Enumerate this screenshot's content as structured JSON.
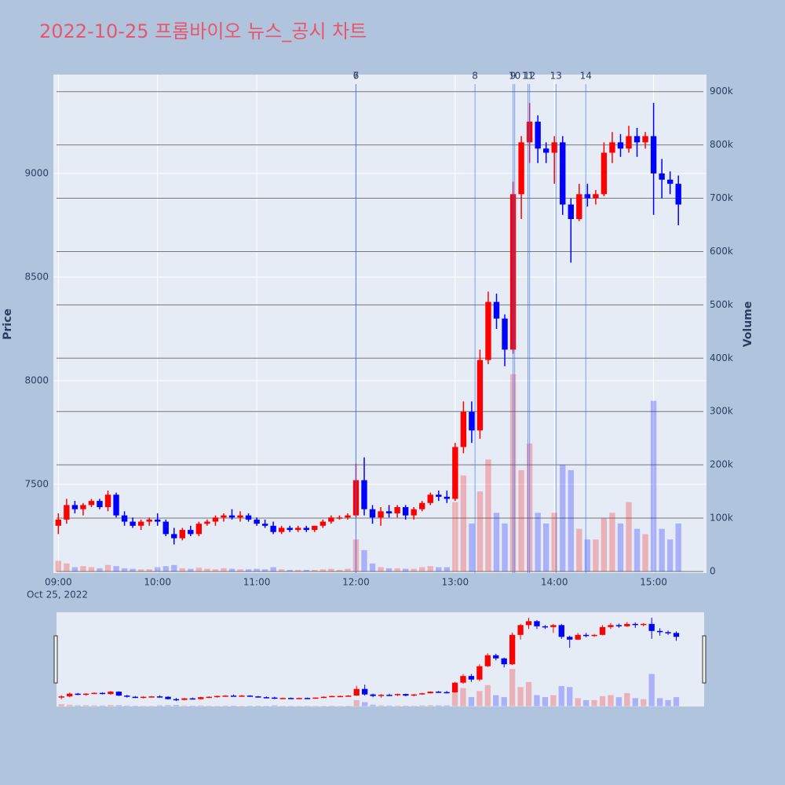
{
  "chart_data": {
    "type": "candlestick",
    "title": "2022-10-25 프롬바이오 뉴스_공시 차트",
    "y_axis_title": "Price",
    "y2_axis_title": "Volume",
    "x_date_label": "Oct 25, 2022",
    "increasing_color": "#ff0000",
    "decreasing_color": "#0000ff",
    "xlim": [
      "2022-10-25 08:57",
      "2022-10-25 15:32"
    ],
    "xticks": [
      {
        "value": "2022-10-25 09:00",
        "label": "09:00"
      },
      {
        "value": "2022-10-25 10:00",
        "label": "10:00"
      },
      {
        "value": "2022-10-25 11:00",
        "label": "11:00"
      },
      {
        "value": "2022-10-25 12:00",
        "label": "12:00"
      },
      {
        "value": "2022-10-25 13:00",
        "label": "13:00"
      },
      {
        "value": "2022-10-25 14:00",
        "label": "14:00"
      },
      {
        "value": "2022-10-25 15:00",
        "label": "15:00"
      }
    ],
    "ylim": [
      7072,
      9477
    ],
    "yticks": [
      7500,
      8000,
      8500,
      9000
    ],
    "y2lim": [
      -3000,
      932000
    ],
    "y2ticks": [
      0,
      {
        "value": 100000,
        "label": "100k"
      },
      {
        "value": 200000,
        "label": "200k"
      },
      {
        "value": 300000,
        "label": "300k"
      },
      {
        "value": 400000,
        "label": "400k"
      },
      {
        "value": 500000,
        "label": "500k"
      },
      {
        "value": 600000,
        "label": "600k"
      },
      {
        "value": 700000,
        "label": "700k"
      },
      {
        "value": 800000,
        "label": "800k"
      },
      {
        "value": 900000,
        "label": "900k"
      }
    ],
    "grid": true,
    "x": [
      "2022-10-25 09:00",
      "2022-10-25 09:05",
      "2022-10-25 09:10",
      "2022-10-25 09:15",
      "2022-10-25 09:20",
      "2022-10-25 09:25",
      "2022-10-25 09:30",
      "2022-10-25 09:35",
      "2022-10-25 09:40",
      "2022-10-25 09:45",
      "2022-10-25 09:50",
      "2022-10-25 09:55",
      "2022-10-25 10:00",
      "2022-10-25 10:05",
      "2022-10-25 10:10",
      "2022-10-25 10:15",
      "2022-10-25 10:20",
      "2022-10-25 10:25",
      "2022-10-25 10:30",
      "2022-10-25 10:35",
      "2022-10-25 10:40",
      "2022-10-25 10:45",
      "2022-10-25 10:50",
      "2022-10-25 10:55",
      "2022-10-25 11:00",
      "2022-10-25 11:05",
      "2022-10-25 11:10",
      "2022-10-25 11:15",
      "2022-10-25 11:20",
      "2022-10-25 11:25",
      "2022-10-25 11:30",
      "2022-10-25 11:35",
      "2022-10-25 11:40",
      "2022-10-25 11:45",
      "2022-10-25 11:50",
      "2022-10-25 11:55",
      "2022-10-25 12:00",
      "2022-10-25 12:05",
      "2022-10-25 12:10",
      "2022-10-25 12:15",
      "2022-10-25 12:20",
      "2022-10-25 12:25",
      "2022-10-25 12:30",
      "2022-10-25 12:35",
      "2022-10-25 12:40",
      "2022-10-25 12:45",
      "2022-10-25 12:50",
      "2022-10-25 12:55",
      "2022-10-25 13:00",
      "2022-10-25 13:05",
      "2022-10-25 13:10",
      "2022-10-25 13:15",
      "2022-10-25 13:20",
      "2022-10-25 13:25",
      "2022-10-25 13:30",
      "2022-10-25 13:35",
      "2022-10-25 13:40",
      "2022-10-25 13:45",
      "2022-10-25 13:50",
      "2022-10-25 13:55",
      "2022-10-25 14:00",
      "2022-10-25 14:05",
      "2022-10-25 14:10",
      "2022-10-25 14:15",
      "2022-10-25 14:20",
      "2022-10-25 14:25",
      "2022-10-25 14:30",
      "2022-10-25 14:35",
      "2022-10-25 14:40",
      "2022-10-25 14:45",
      "2022-10-25 14:50",
      "2022-10-25 14:55",
      "2022-10-25 15:00",
      "2022-10-25 15:05",
      "2022-10-25 15:10",
      "2022-10-25 15:15"
    ],
    "open": [
      7300,
      7330,
      7400,
      7380,
      7400,
      7420,
      7390,
      7450,
      7350,
      7320,
      7300,
      7320,
      7330,
      7320,
      7260,
      7240,
      7280,
      7260,
      7310,
      7320,
      7340,
      7350,
      7340,
      7350,
      7330,
      7310,
      7300,
      7270,
      7290,
      7280,
      7290,
      7280,
      7300,
      7320,
      7340,
      7340,
      7350,
      7520,
      7380,
      7340,
      7370,
      7360,
      7390,
      7350,
      7380,
      7410,
      7450,
      7440,
      7430,
      7680,
      7850,
      7760,
      8100,
      8380,
      8300,
      8150,
      8900,
      9150,
      9250,
      9120,
      9100,
      9150,
      8850,
      8780,
      8900,
      8880,
      8900,
      9100,
      9150,
      9120,
      9180,
      9150,
      9180,
      9000,
      8970,
      8950
    ],
    "high": [
      7360,
      7430,
      7420,
      7410,
      7430,
      7430,
      7470,
      7460,
      7370,
      7340,
      7330,
      7340,
      7360,
      7330,
      7290,
      7290,
      7300,
      7320,
      7330,
      7350,
      7360,
      7380,
      7370,
      7360,
      7340,
      7330,
      7320,
      7300,
      7300,
      7300,
      7300,
      7300,
      7330,
      7350,
      7350,
      7360,
      7600,
      7630,
      7400,
      7390,
      7400,
      7400,
      7400,
      7390,
      7420,
      7460,
      7470,
      7470,
      7700,
      7900,
      7900,
      8150,
      8430,
      8420,
      8320,
      8960,
      9180,
      9340,
      9280,
      9150,
      9180,
      9180,
      8880,
      8950,
      8950,
      8920,
      9150,
      9200,
      9190,
      9230,
      9220,
      9200,
      9340,
      9070,
      9010,
      8990
    ],
    "low": [
      7260,
      7310,
      7360,
      7350,
      7390,
      7380,
      7370,
      7340,
      7300,
      7290,
      7280,
      7300,
      7300,
      7250,
      7210,
      7230,
      7250,
      7250,
      7300,
      7300,
      7320,
      7330,
      7320,
      7320,
      7300,
      7290,
      7260,
      7260,
      7270,
      7270,
      7270,
      7270,
      7290,
      7310,
      7330,
      7330,
      7340,
      7350,
      7310,
      7300,
      7340,
      7340,
      7330,
      7330,
      7370,
      7400,
      7420,
      7410,
      7420,
      7650,
      7700,
      7720,
      8080,
      8250,
      8070,
      8130,
      8780,
      9050,
      9050,
      9050,
      8950,
      8800,
      8570,
      8770,
      8840,
      8850,
      8890,
      9050,
      9080,
      9100,
      9080,
      9120,
      8800,
      8880,
      8900,
      8750
    ],
    "close": [
      7330,
      7400,
      7380,
      7400,
      7420,
      7390,
      7450,
      7350,
      7320,
      7300,
      7320,
      7330,
      7320,
      7260,
      7240,
      7280,
      7260,
      7310,
      7320,
      7340,
      7350,
      7340,
      7350,
      7330,
      7310,
      7300,
      7270,
      7290,
      7280,
      7290,
      7280,
      7300,
      7320,
      7340,
      7340,
      7350,
      7520,
      7380,
      7340,
      7370,
      7360,
      7390,
      7350,
      7380,
      7410,
      7450,
      7440,
      7430,
      7680,
      7850,
      7760,
      8100,
      8380,
      8300,
      8150,
      8900,
      9150,
      9250,
      9120,
      9100,
      9150,
      8850,
      8780,
      8900,
      8880,
      8900,
      9100,
      9150,
      9120,
      9180,
      9150,
      9180,
      9000,
      8970,
      8950,
      8850
    ],
    "volume": [
      20000,
      15000,
      8000,
      10000,
      8000,
      6000,
      12000,
      10000,
      6000,
      5000,
      4000,
      4000,
      8000,
      10000,
      12000,
      6000,
      5000,
      7000,
      5000,
      4000,
      6000,
      5000,
      4000,
      4000,
      5000,
      4000,
      8000,
      4000,
      3000,
      3000,
      3000,
      3000,
      4000,
      5000,
      3000,
      5000,
      60000,
      40000,
      15000,
      8000,
      6000,
      6000,
      5000,
      5000,
      8000,
      10000,
      8000,
      8000,
      130000,
      180000,
      90000,
      150000,
      210000,
      110000,
      90000,
      370000,
      190000,
      240000,
      110000,
      90000,
      110000,
      200000,
      190000,
      80000,
      60000,
      60000,
      100000,
      110000,
      90000,
      130000,
      80000,
      70000,
      320000,
      80000,
      60000,
      90000
    ],
    "events": [
      {
        "label": "6",
        "x": "2022-10-25 12:00"
      },
      {
        "label": "7",
        "x": "2022-10-25 12:00"
      },
      {
        "label": "8",
        "x": "2022-10-25 13:12"
      },
      {
        "label": "9",
        "x": "2022-10-25 13:35"
      },
      {
        "label": "10",
        "x": "2022-10-25 13:36"
      },
      {
        "label": "11",
        "x": "2022-10-25 13:44"
      },
      {
        "label": "12",
        "x": "2022-10-25 13:45"
      },
      {
        "label": "13",
        "x": "2022-10-25 14:01"
      },
      {
        "label": "14",
        "x": "2022-10-25 14:19"
      }
    ]
  }
}
